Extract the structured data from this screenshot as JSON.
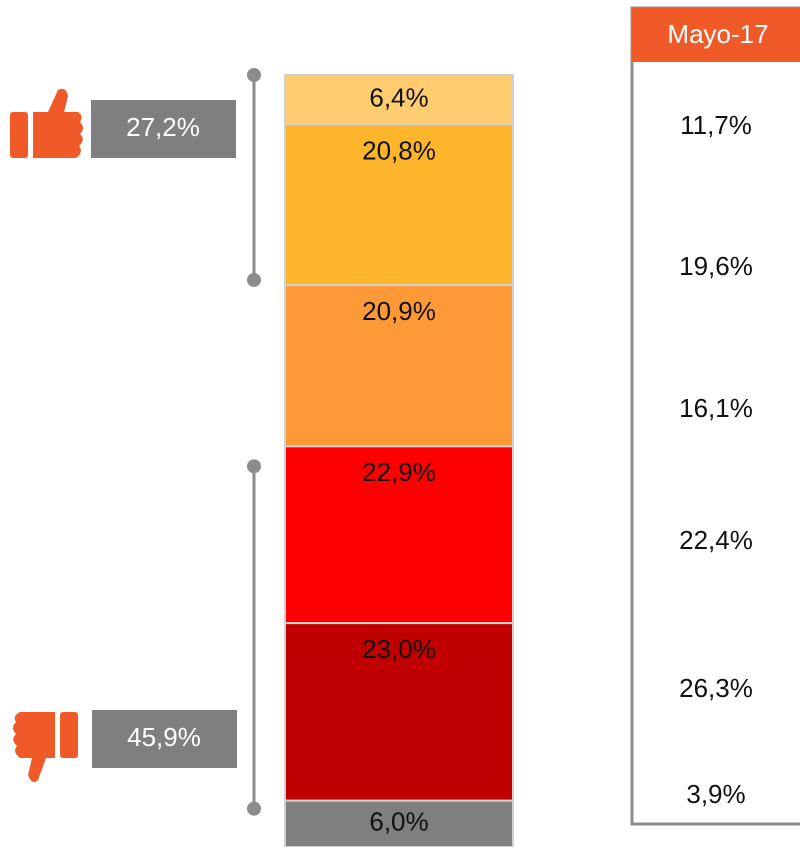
{
  "chart_data": {
    "type": "stacked_bar",
    "ylim": [
      0,
      100
    ],
    "series": [
      {
        "color": "#ffcc70",
        "values": [
          6.4
        ],
        "value_labels": [
          "6,4%"
        ]
      },
      {
        "color": "#fdb52b",
        "values": [
          20.8
        ],
        "value_labels": [
          "20,8%"
        ]
      },
      {
        "color": "#fd9a37",
        "values": [
          20.9
        ],
        "value_labels": [
          "20,9%"
        ]
      },
      {
        "color": "#ff0000",
        "values": [
          22.9
        ],
        "value_labels": [
          "22,9%"
        ]
      },
      {
        "color": "#c00000",
        "values": [
          23.0
        ],
        "value_labels": [
          "23,0%"
        ]
      },
      {
        "color": "#7f7f7f",
        "values": [
          6.0
        ],
        "value_labels": [
          "6,0%"
        ]
      }
    ],
    "annotations": [
      {
        "value": 27.2,
        "label": "27,2%"
      },
      {
        "value": 45.9,
        "label": "45,9%"
      }
    ],
    "comparison": {
      "title": "Mayo-17",
      "values": [
        "11,7%",
        "19,6%",
        "16,1%",
        "22,4%",
        "26,3%",
        "3,9%"
      ]
    }
  }
}
